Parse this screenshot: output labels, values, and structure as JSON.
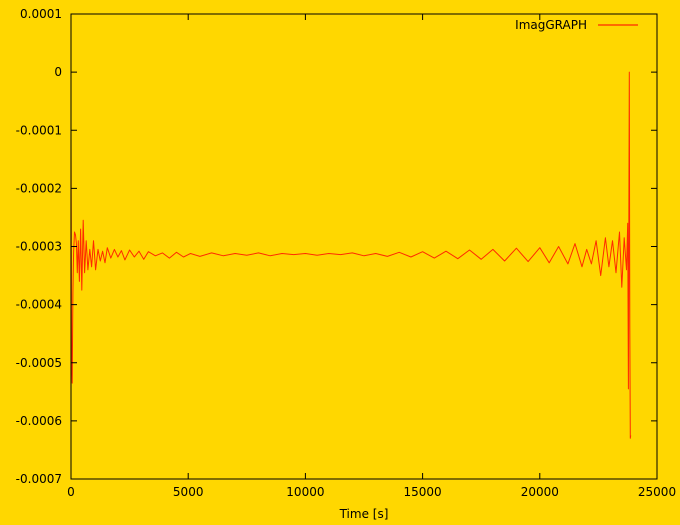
{
  "chart_data": {
    "type": "line",
    "title": "",
    "xlabel": "Time [s]",
    "ylabel": "",
    "xlim": [
      0,
      25000
    ],
    "ylim": [
      -0.0007,
      0.0001
    ],
    "xticks": [
      0,
      5000,
      10000,
      15000,
      20000,
      25000
    ],
    "xtick_labels": [
      "0",
      "5000",
      "10000",
      "15000",
      "20000",
      "25000"
    ],
    "yticks": [
      0.0001,
      0,
      -0.0001,
      -0.0002,
      -0.0003,
      -0.0004,
      -0.0005,
      -0.0006,
      -0.0007
    ],
    "ytick_labels": [
      "0.0001",
      "0",
      "-0.0001",
      "-0.0002",
      "-0.0003",
      "-0.0004",
      "-0.0005",
      "-0.0006",
      "-0.0007"
    ],
    "grid": false,
    "legend_position": "top-right",
    "background_color": "#FFD700",
    "series": [
      {
        "name": "ImagGRAPH",
        "color": "#FF2A00",
        "x": [
          0,
          20,
          50,
          80,
          110,
          150,
          190,
          230,
          270,
          310,
          360,
          410,
          460,
          520,
          580,
          650,
          720,
          800,
          880,
          960,
          1050,
          1150,
          1250,
          1350,
          1450,
          1550,
          1700,
          1850,
          2000,
          2150,
          2300,
          2500,
          2700,
          2900,
          3100,
          3300,
          3600,
          3900,
          4200,
          4500,
          4800,
          5100,
          5500,
          6000,
          6500,
          7000,
          7500,
          8000,
          8500,
          9000,
          9500,
          10000,
          10500,
          11000,
          11500,
          12000,
          12500,
          13000,
          13500,
          14000,
          14500,
          15000,
          15500,
          16000,
          16500,
          17000,
          17500,
          18000,
          18500,
          19000,
          19500,
          20000,
          20400,
          20800,
          21200,
          21500,
          21800,
          22000,
          22200,
          22400,
          22600,
          22800,
          22950,
          23100,
          23250,
          23400,
          23500,
          23600,
          23700,
          23750,
          23780,
          23800,
          23820,
          23840,
          23860,
          23880
        ],
        "y": [
          -0.000125,
          -0.00048,
          -0.000535,
          -0.00038,
          -0.00031,
          -0.000275,
          -0.00028,
          -0.000295,
          -0.000345,
          -0.00029,
          -0.00036,
          -0.00027,
          -0.000375,
          -0.000255,
          -0.000345,
          -0.00029,
          -0.00034,
          -0.000305,
          -0.000335,
          -0.00029,
          -0.00034,
          -0.000305,
          -0.000325,
          -0.000308,
          -0.000328,
          -0.000302,
          -0.00032,
          -0.000305,
          -0.000318,
          -0.000307,
          -0.000323,
          -0.000306,
          -0.000318,
          -0.000308,
          -0.000322,
          -0.000309,
          -0.000316,
          -0.000311,
          -0.00032,
          -0.00031,
          -0.000318,
          -0.000312,
          -0.000317,
          -0.000311,
          -0.000316,
          -0.000312,
          -0.000315,
          -0.000311,
          -0.000316,
          -0.000312,
          -0.000314,
          -0.000312,
          -0.000315,
          -0.000312,
          -0.000314,
          -0.000311,
          -0.000316,
          -0.000312,
          -0.000317,
          -0.00031,
          -0.000318,
          -0.000309,
          -0.00032,
          -0.000308,
          -0.000321,
          -0.000306,
          -0.000322,
          -0.000305,
          -0.000325,
          -0.000303,
          -0.000326,
          -0.000302,
          -0.000328,
          -0.0003,
          -0.00033,
          -0.000295,
          -0.000335,
          -0.000305,
          -0.00033,
          -0.00029,
          -0.00035,
          -0.000285,
          -0.000335,
          -0.00029,
          -0.000345,
          -0.000275,
          -0.00037,
          -0.000285,
          -0.00034,
          -0.00026,
          -0.000545,
          -0.000225,
          -0.0,
          -0.000435,
          -0.00063,
          -0.000625
        ]
      }
    ]
  }
}
